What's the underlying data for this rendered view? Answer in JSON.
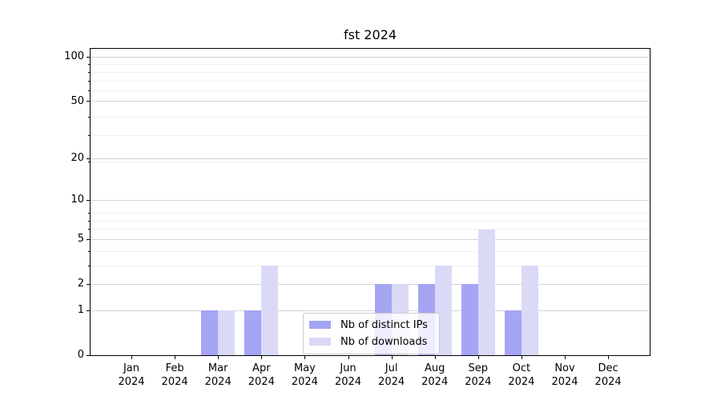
{
  "title": "fst 2024",
  "chart_data": {
    "type": "bar",
    "title": "fst 2024",
    "x_categories": [
      "Jan",
      "Feb",
      "Mar",
      "Apr",
      "May",
      "Jun",
      "Jul",
      "Aug",
      "Sep",
      "Oct",
      "Nov",
      "Dec"
    ],
    "x_year": "2024",
    "series": [
      {
        "name": "Nb of distinct IPs",
        "color": "#a5a5f3",
        "values": [
          0,
          0,
          1,
          1,
          0,
          0,
          2,
          2,
          2,
          1,
          0,
          0
        ]
      },
      {
        "name": "Nb of downloads",
        "color": "#dadaf7",
        "values": [
          0,
          0,
          1,
          3,
          0,
          0,
          2,
          3,
          6,
          3,
          0,
          0
        ]
      }
    ],
    "yscale": "log10(1+x)",
    "ylim": [
      0,
      114
    ],
    "yticks": [
      0,
      1,
      2,
      5,
      10,
      20,
      50,
      100
    ],
    "minor_gridline_values": [
      3,
      4,
      6,
      7,
      8,
      19,
      29,
      39,
      59,
      69,
      79,
      89
    ],
    "grid": true,
    "legend_position": "lower center"
  },
  "legend": {
    "items": [
      {
        "label": "Nb of distinct IPs"
      },
      {
        "label": "Nb of downloads"
      }
    ]
  },
  "colors": {
    "bar_distinct_ips": "#a5a5f3",
    "bar_downloads": "#dadaf7",
    "major_grid": "#d4d4d4",
    "minor_grid": "#efefef",
    "spine": "#000000",
    "text": "#000000"
  }
}
